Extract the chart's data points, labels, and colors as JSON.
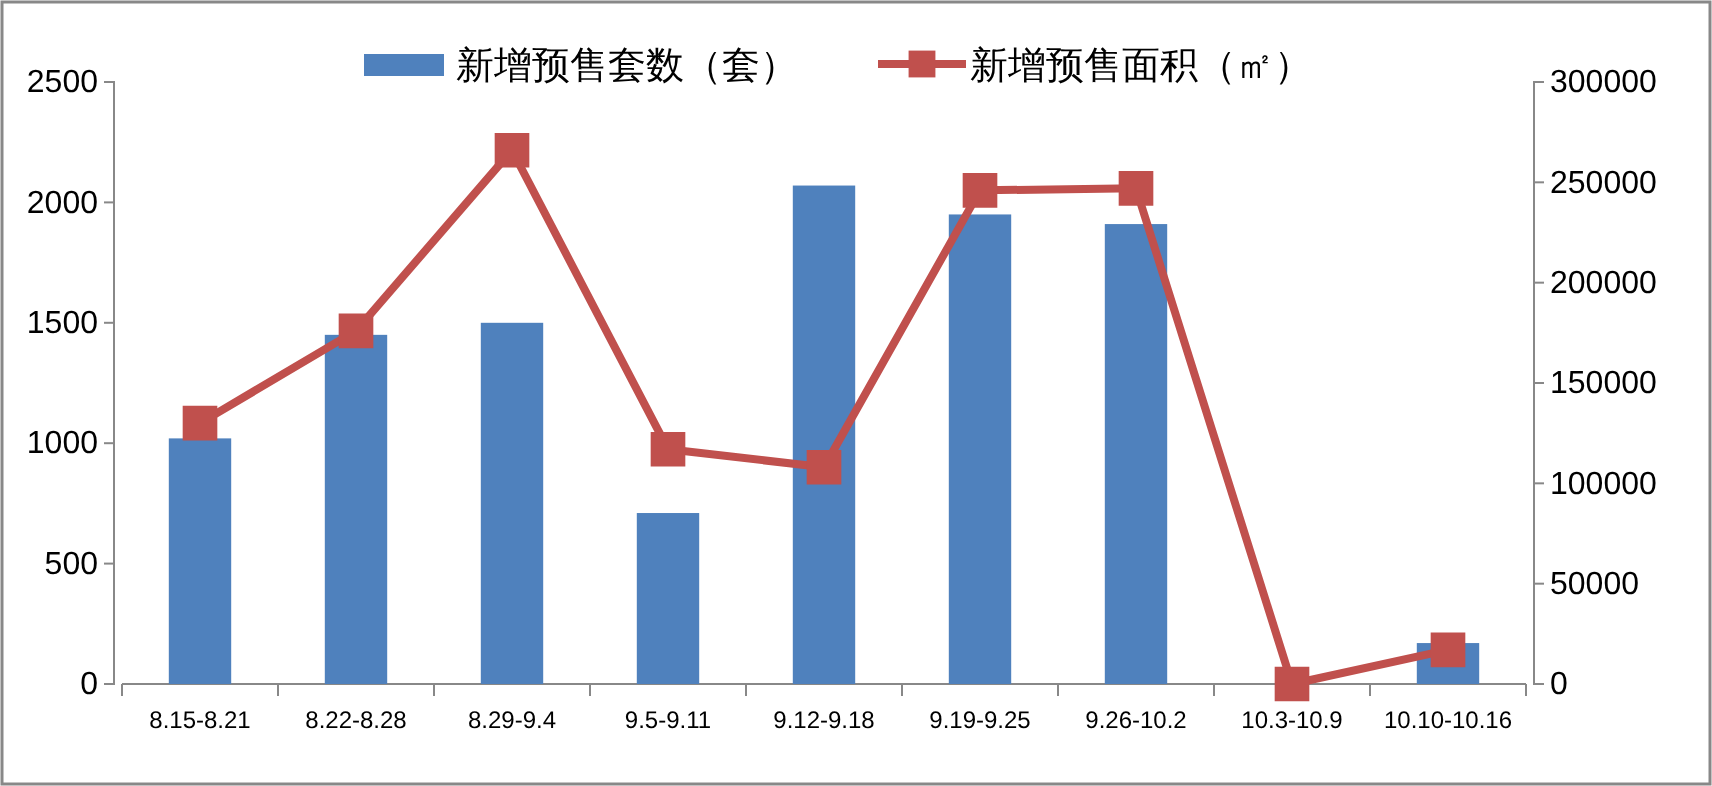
{
  "chart_data": {
    "type": "bar",
    "categories": [
      "8.15-8.21",
      "8.22-8.28",
      "8.29-9.4",
      "9.5-9.11",
      "9.12-9.18",
      "9.19-9.25",
      "9.26-10.2",
      "10.3-10.9",
      "10.10-10.16"
    ],
    "series": [
      {
        "name": "新增预售套数（套）",
        "color": "#4f81bd",
        "values": [
          1020,
          1450,
          1500,
          710,
          2070,
          1950,
          1910,
          0,
          170
        ]
      },
      {
        "name": "新增预售面积（㎡）",
        "type": "line",
        "axis": "y2",
        "color": "#c0504d",
        "marker": "square",
        "values": [
          130000,
          176000,
          266000,
          117000,
          108000,
          246000,
          247000,
          0,
          17000
        ]
      }
    ],
    "ylim": [
      0,
      2500
    ],
    "yticks": [
      0,
      500,
      1000,
      1500,
      2000,
      2500
    ],
    "y2lim": [
      0,
      300000
    ],
    "y2ticks": [
      0,
      50000,
      100000,
      150000,
      200000,
      250000,
      300000
    ],
    "legend": "top",
    "grid": false
  }
}
